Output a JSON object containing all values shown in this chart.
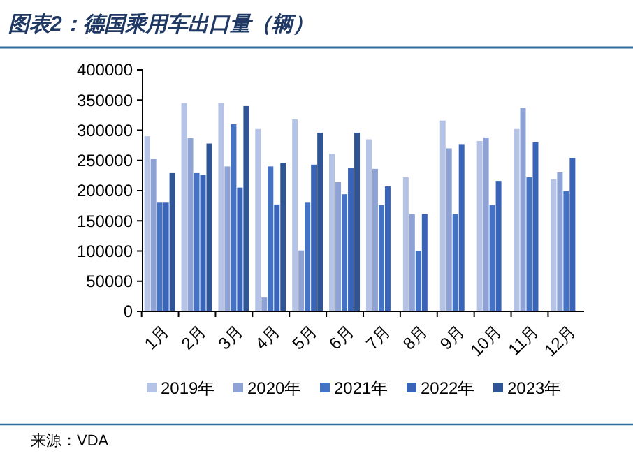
{
  "chart_data": {
    "type": "bar",
    "title": "图表2：德国乘用车出口量（辆）",
    "annotations": [
      "来源：VDA"
    ],
    "categories": [
      "1月",
      "2月",
      "3月",
      "4月",
      "5月",
      "6月",
      "7月",
      "8月",
      "9月",
      "10月",
      "11月",
      "12月"
    ],
    "series": [
      {
        "name": "2019年",
        "color": "#b4c3e6",
        "values": [
          290000,
          345000,
          345000,
          302000,
          318000,
          261000,
          285000,
          222000,
          316000,
          282000,
          302000,
          219000
        ]
      },
      {
        "name": "2020年",
        "color": "#8fa2d6",
        "values": [
          252000,
          287000,
          240000,
          23000,
          101000,
          214000,
          236000,
          161000,
          270000,
          288000,
          337000,
          230000
        ]
      },
      {
        "name": "2021年",
        "color": "#4472c4",
        "values": [
          180000,
          229000,
          310000,
          240000,
          180000,
          194000,
          176000,
          100000,
          161000,
          176000,
          222000,
          199000
        ]
      },
      {
        "name": "2022年",
        "color": "#3a64b8",
        "values": [
          180000,
          226000,
          205000,
          177000,
          243000,
          238000,
          207000,
          161000,
          277000,
          216000,
          280000,
          254000
        ]
      },
      {
        "name": "2023年",
        "color": "#2f5597",
        "values": [
          229000,
          278000,
          340000,
          246000,
          296000,
          296000,
          null,
          null,
          null,
          null,
          null,
          null
        ]
      }
    ],
    "ylim": [
      0,
      400000
    ],
    "yticks": [
      0,
      50000,
      100000,
      150000,
      200000,
      250000,
      300000,
      350000,
      400000
    ],
    "legend": "bottom"
  }
}
